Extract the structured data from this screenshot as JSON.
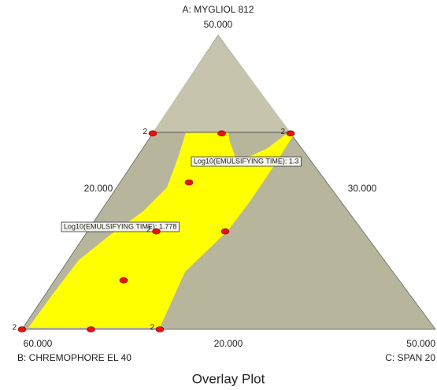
{
  "chart_data": {
    "type": "ternary",
    "title": "Overlay Plot",
    "axes": {
      "A": {
        "name": "A: MYGLIOL 812",
        "lim": [
          20,
          50
        ],
        "ticks": [
          {
            "value": 20,
            "label": "20.000"
          },
          {
            "value": 50,
            "label": "50.000"
          }
        ]
      },
      "B": {
        "name": "B: CHREMOPHORE EL 40",
        "lim": [
          30,
          60
        ],
        "ticks": [
          {
            "value": 30,
            "label": "30.000"
          },
          {
            "value": 60,
            "label": "60.000"
          }
        ]
      },
      "C": {
        "name": "C: SPAN 20",
        "lim": [
          20,
          50
        ],
        "ticks": [
          {
            "value": 20,
            "label": "20.000"
          },
          {
            "value": 50,
            "label": "50.000"
          }
        ]
      }
    },
    "points": {
      "color": "#e8120c",
      "A": [
        20,
        20,
        20,
        25,
        30,
        30,
        35,
        40,
        40,
        40
      ],
      "B": [
        60,
        55,
        50,
        50,
        45,
        40,
        40,
        40,
        35,
        30
      ],
      "C": [
        20,
        25,
        30,
        25,
        25,
        30,
        25,
        20,
        25,
        30
      ],
      "replicates": [
        2,
        null,
        2,
        null,
        2,
        null,
        null,
        2,
        null,
        2
      ]
    },
    "region_color": "#ffff00",
    "flags": [
      "Log10(EMULSIFYING TIME): 1.3",
      "Log10(EMULSIFYING TIME): 1.778"
    ]
  }
}
